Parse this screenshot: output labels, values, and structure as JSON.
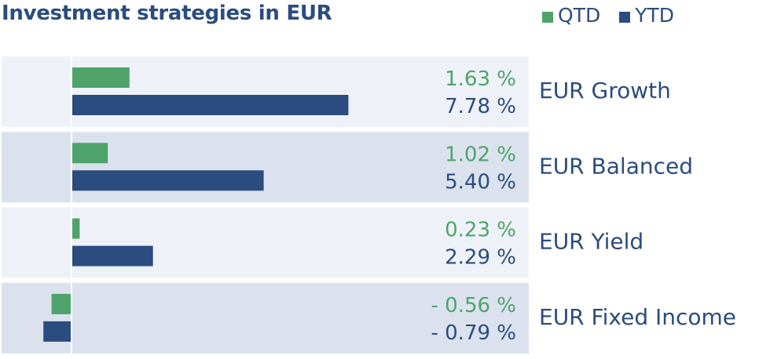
{
  "title": "Investment strategies in EUR",
  "legend": [
    {
      "label": "QTD",
      "color": "#4ea36b"
    },
    {
      "label": "YTD",
      "color": "#2b4c7e"
    }
  ],
  "chart_data": {
    "type": "bar",
    "orientation": "horizontal",
    "title": "Investment strategies in EUR",
    "categories": [
      "EUR Growth",
      "EUR Balanced",
      "EUR Yield",
      "EUR Fixed Income"
    ],
    "series": [
      {
        "name": "QTD",
        "color": "#4ea36b",
        "values": [
          1.63,
          1.02,
          0.23,
          -0.56
        ],
        "labels": [
          "1.63 %",
          "1.02 %",
          "0.23 %",
          "- 0.56 %"
        ]
      },
      {
        "name": "YTD",
        "color": "#2b4c7e",
        "values": [
          7.78,
          5.4,
          2.29,
          -0.79
        ],
        "labels": [
          "7.78 %",
          "5.40 %",
          "2.29 %",
          "- 0.79 %"
        ]
      }
    ],
    "value_unit": "%",
    "legend_position": "top-right",
    "row_colors": [
      "#eef2f8",
      "#dbe2ee"
    ]
  }
}
